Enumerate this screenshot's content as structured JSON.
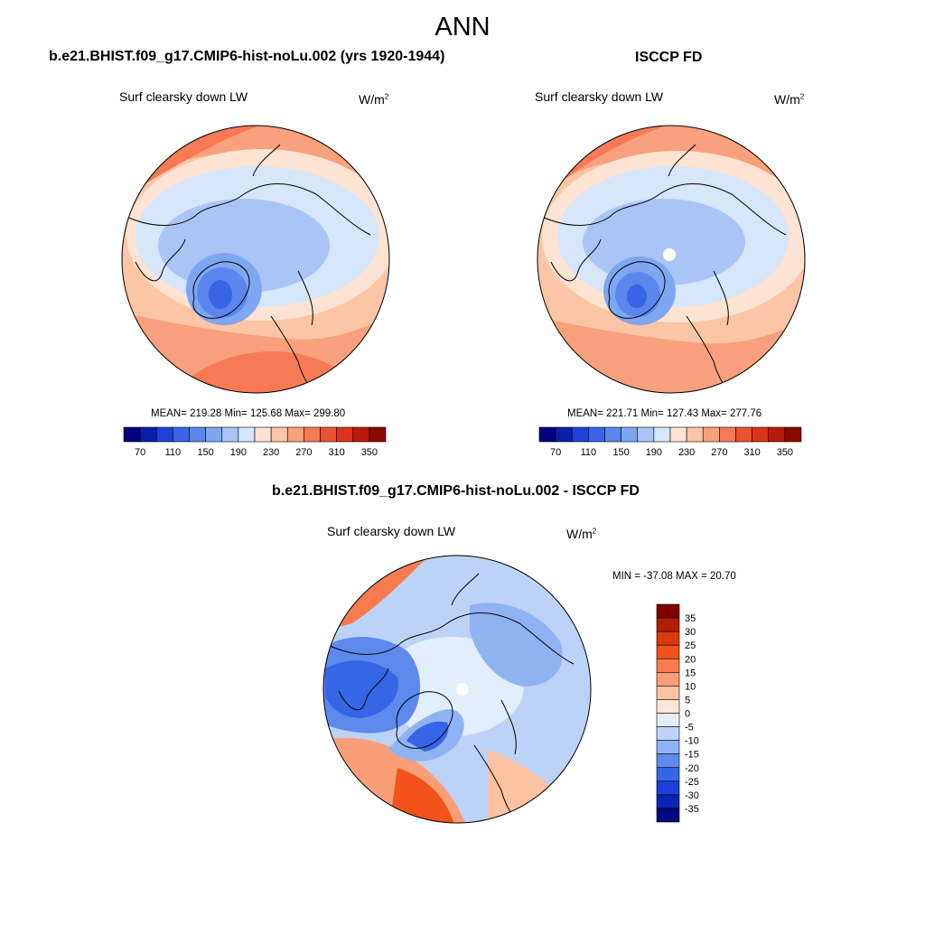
{
  "figure": {
    "title": "ANN",
    "diff_title": "b.e21.BHIST.f09_g17.CMIP6-hist-noLu.002 - ISCCP FD"
  },
  "chart_data": [
    {
      "type": "polar-contour-map",
      "title": "b.e21.BHIST.f09_g17.CMIP6-hist-noLu.002 (yrs 1920-1944)",
      "variable": "Surf clearsky down LW",
      "units": "W/m",
      "units_sup": "2",
      "stats": {
        "label": "MEAN= 219.28  Min= 125.68  Max= 299.80",
        "mean": 219.28,
        "min": 125.68,
        "max": 299.8
      },
      "colorbar": {
        "orientation": "horizontal",
        "tick_labels": [
          "70",
          "110",
          "150",
          "190",
          "230",
          "270",
          "310",
          "350"
        ],
        "colors": [
          "#00007f",
          "#0a1ea8",
          "#1e42d6",
          "#3765e6",
          "#5a86ee",
          "#7fa6f1",
          "#a9c5f6",
          "#d6e6fb",
          "#fde3d2",
          "#fcc5a6",
          "#f9a07c",
          "#f57a55",
          "#ec5230",
          "#dd3318",
          "#b81a08",
          "#8a0a00"
        ]
      }
    },
    {
      "type": "polar-contour-map",
      "title": "ISCCP FD",
      "variable": "Surf clearsky down LW",
      "units": "W/m",
      "units_sup": "2",
      "stats": {
        "label": "MEAN= 221.71  Min= 127.43  Max= 277.76",
        "mean": 221.71,
        "min": 127.43,
        "max": 277.76
      },
      "colorbar": {
        "orientation": "horizontal",
        "tick_labels": [
          "70",
          "110",
          "150",
          "190",
          "230",
          "270",
          "310",
          "350"
        ],
        "colors": [
          "#00007f",
          "#0a1ea8",
          "#1e42d6",
          "#3765e6",
          "#5a86ee",
          "#7fa6f1",
          "#a9c5f6",
          "#d6e6fb",
          "#fde3d2",
          "#fcc5a6",
          "#f9a07c",
          "#f57a55",
          "#ec5230",
          "#dd3318",
          "#b81a08",
          "#8a0a00"
        ]
      }
    },
    {
      "type": "polar-contour-map",
      "title": "b.e21.BHIST.f09_g17.CMIP6-hist-noLu.002 - ISCCP FD",
      "variable": "Surf clearsky down LW",
      "units": "W/m",
      "units_sup": "2",
      "stats": {
        "label": "MIN = -37.08 MAX =  20.70",
        "min": -37.08,
        "max": 20.7
      },
      "colorbar": {
        "orientation": "vertical",
        "tick_labels": [
          "35",
          "30",
          "25",
          "20",
          "15",
          "10",
          "5",
          "0",
          "-5",
          "-10",
          "-15",
          "-20",
          "-25",
          "-30",
          "-35"
        ],
        "colors": [
          "#800000",
          "#b31d00",
          "#dc3a0b",
          "#f2531b",
          "#f77b4e",
          "#fa9e78",
          "#fcc2a2",
          "#fde6d6",
          "#e2eefb",
          "#bcd3f7",
          "#8fb2f2",
          "#5d8aec",
          "#3466e6",
          "#1a40dc",
          "#0c22b4",
          "#00087f"
        ]
      }
    }
  ]
}
